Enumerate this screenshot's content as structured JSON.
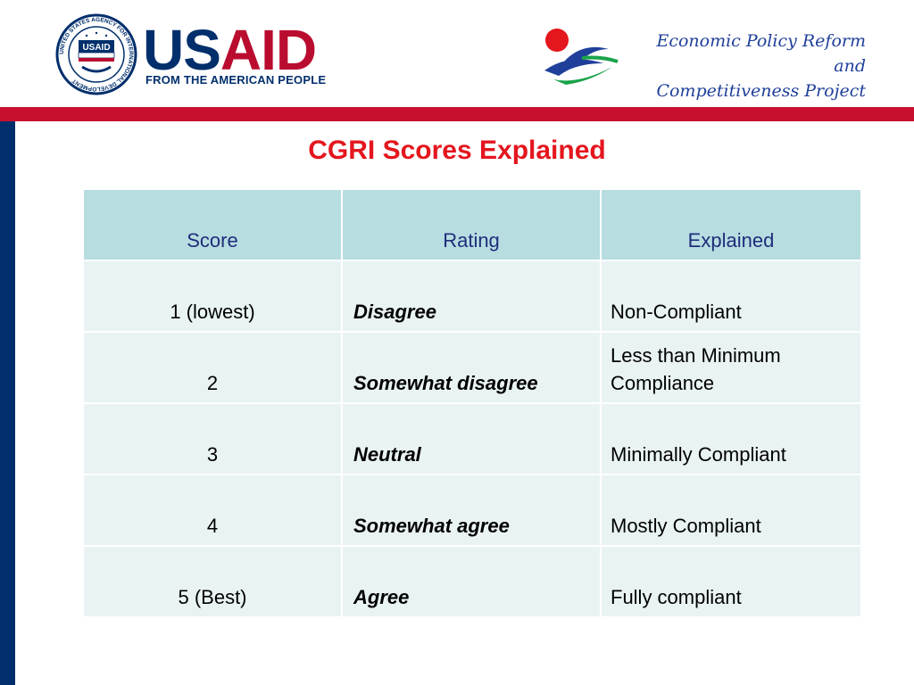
{
  "header": {
    "usaid_us": "US",
    "usaid_aid": "AID",
    "usaid_tagline": "FROM THE AMERICAN PEOPLE",
    "seal_text": "UNITED STATES AGENCY FOR INTERNATIONAL DEVELOPMENT",
    "project_line1": "Economic Policy Reform and",
    "project_line2": "Competitiveness Project"
  },
  "title": "CGRI Scores Explained",
  "table": {
    "headers": [
      "Score",
      "Rating",
      "Explained"
    ],
    "rows": [
      {
        "score": "1 (lowest)",
        "rating": "Disagree",
        "explained": "Non-Compliant"
      },
      {
        "score": "2",
        "rating": "Somewhat disagree",
        "explained": "Less than Minimum Compliance"
      },
      {
        "score": "3",
        "rating": "Neutral",
        "explained": "Minimally Compliant"
      },
      {
        "score": "4",
        "rating": "Somewhat agree",
        "explained": "Mostly Compliant"
      },
      {
        "score": "5 (Best)",
        "rating": "Agree",
        "explained": "Fully compliant"
      }
    ]
  },
  "colors": {
    "usaid_blue": "#002F6C",
    "usaid_red": "#BA0C2F",
    "title_red": "#E4161E",
    "header_fill": "#B7DDE1",
    "row_fill": "#EAF3F4",
    "header_text": "#1F2D7A"
  }
}
